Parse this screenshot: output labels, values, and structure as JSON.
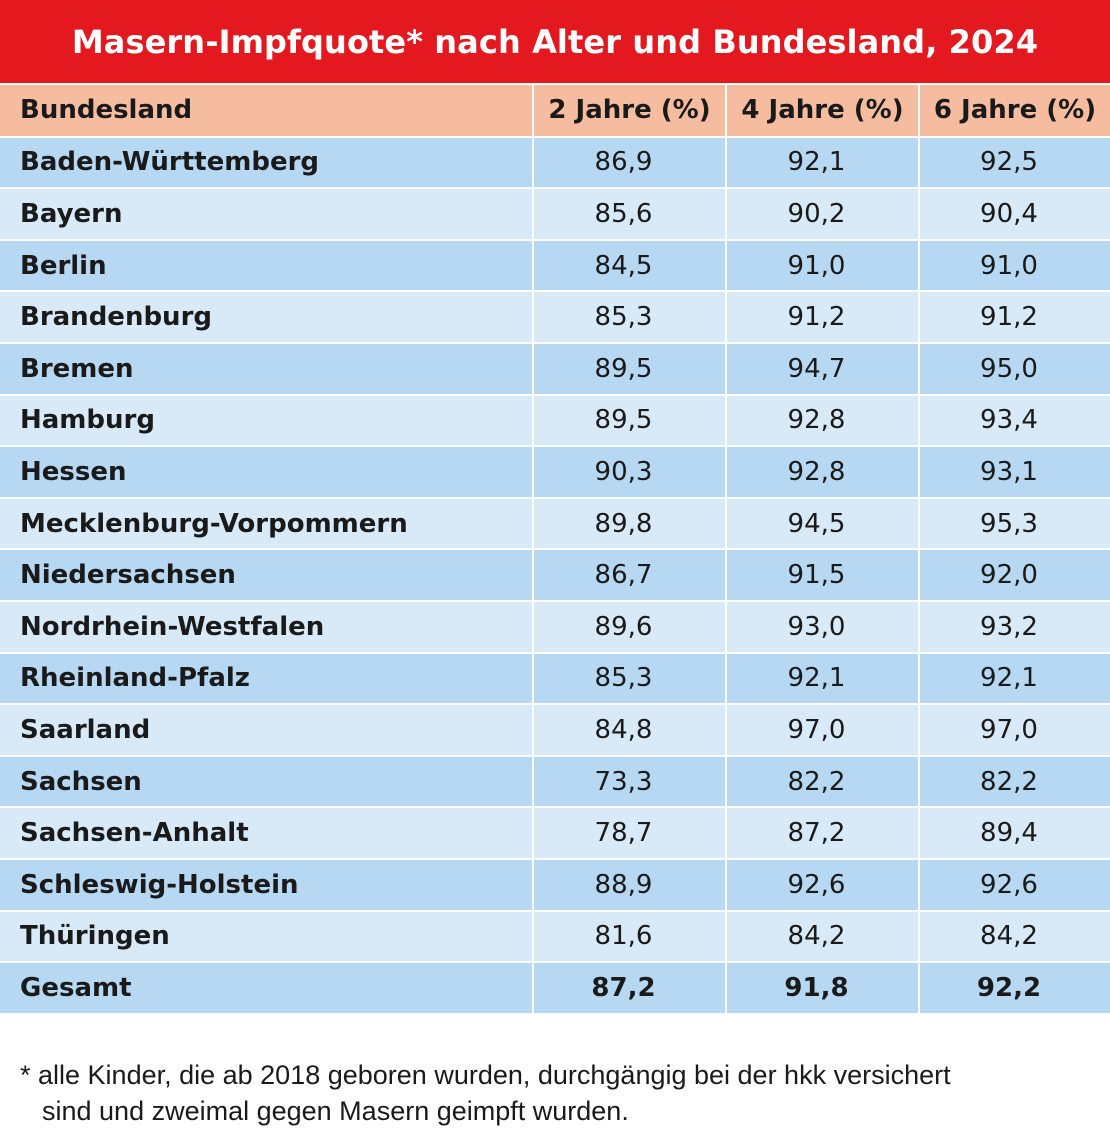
{
  "colors": {
    "title_bar": "#e3191f",
    "header_row": "#f6bca0",
    "row_dark": "#b6d8f2",
    "row_light": "#d8e9f8",
    "text": "#1a1a1a"
  },
  "chart_data": {
    "type": "table",
    "title": "Masern-Impfquote* nach Alter und Bundesland, 2024",
    "columns": [
      "Bundesland",
      "2 Jahre (%)",
      "4 Jahre (%)",
      "6 Jahre (%)"
    ],
    "rows": [
      [
        "Baden-Württemberg",
        "86,9",
        "92,1",
        "92,5"
      ],
      [
        "Bayern",
        "85,6",
        "90,2",
        "90,4"
      ],
      [
        "Berlin",
        "84,5",
        "91,0",
        "91,0"
      ],
      [
        "Brandenburg",
        "85,3",
        "91,2",
        "91,2"
      ],
      [
        "Bremen",
        "89,5",
        "94,7",
        "95,0"
      ],
      [
        "Hamburg",
        "89,5",
        "92,8",
        "93,4"
      ],
      [
        "Hessen",
        "90,3",
        "92,8",
        "93,1"
      ],
      [
        "Mecklenburg-Vorpommern",
        "89,8",
        "94,5",
        "95,3"
      ],
      [
        "Niedersachsen",
        "86,7",
        "91,5",
        "92,0"
      ],
      [
        "Nordrhein-Westfalen",
        "89,6",
        "93,0",
        "93,2"
      ],
      [
        "Rheinland-Pfalz",
        "85,3",
        "92,1",
        "92,1"
      ],
      [
        "Saarland",
        "84,8",
        "97,0",
        "97,0"
      ],
      [
        "Sachsen",
        "73,3",
        "82,2",
        "82,2"
      ],
      [
        "Sachsen-Anhalt",
        "78,7",
        "87,2",
        "89,4"
      ],
      [
        "Schleswig-Holstein",
        "88,9",
        "92,6",
        "92,6"
      ],
      [
        "Thüringen",
        "81,6",
        "84,2",
        "84,2"
      ]
    ],
    "total": [
      "Gesamt",
      "87,2",
      "91,8",
      "92,2"
    ],
    "footnote_line1": "* alle Kinder, die ab 2018 geboren wurden, durchgängig bei der hkk versichert",
    "footnote_line2": "sind und zweimal gegen Masern geimpft wurden."
  }
}
